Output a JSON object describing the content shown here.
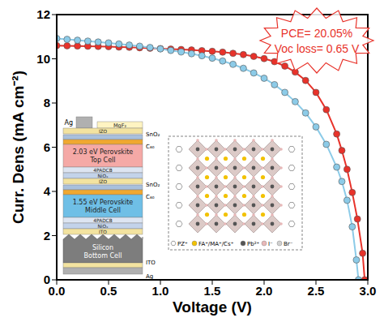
{
  "chart_data": {
    "type": "line",
    "title": null,
    "x_label": "Voltage (V)",
    "y_label": "Curr. Dens (mA cm⁻²)",
    "xlim": [
      0,
      3
    ],
    "xticks": [
      {
        "value": 0,
        "label": "0.0"
      },
      {
        "value": 0.5,
        "label": "0.5"
      },
      {
        "value": 1,
        "label": "1.0"
      },
      {
        "value": 1.5,
        "label": "1.5"
      },
      {
        "value": 2,
        "label": "2.0"
      },
      {
        "value": 2.5,
        "label": "2.5"
      },
      {
        "value": 3,
        "label": "3.0"
      }
    ],
    "ylim": [
      0,
      12
    ],
    "yticks": [
      0,
      2,
      4,
      6,
      8,
      10,
      12
    ],
    "grid": false,
    "series": [
      {
        "color": "#e8322a",
        "marker": "circle",
        "x": [
          0,
          0.1,
          0.2,
          0.3,
          0.4,
          0.5,
          0.6,
          0.7,
          0.8,
          0.9,
          1.0,
          1.1,
          1.2,
          1.3,
          1.4,
          1.5,
          1.6,
          1.7,
          1.8,
          1.9,
          2.0,
          2.1,
          2.2,
          2.3,
          2.4,
          2.5,
          2.6,
          2.7,
          2.75,
          2.8,
          2.85,
          2.9,
          2.95,
          2.97
        ],
        "values": [
          10.6,
          10.59,
          10.58,
          10.57,
          10.56,
          10.55,
          10.53,
          10.52,
          10.5,
          10.48,
          10.46,
          10.44,
          10.42,
          10.4,
          10.37,
          10.34,
          10.3,
          10.25,
          10.19,
          10.11,
          10.01,
          9.87,
          9.67,
          9.4,
          9.02,
          8.48,
          7.7,
          6.6,
          5.85,
          5.0,
          3.95,
          2.75,
          1.2,
          0.0
        ]
      },
      {
        "color": "#8ccbe8",
        "marker": "circle",
        "x": [
          0,
          0.1,
          0.2,
          0.3,
          0.4,
          0.5,
          0.6,
          0.7,
          0.8,
          0.9,
          1.0,
          1.1,
          1.2,
          1.3,
          1.4,
          1.5,
          1.6,
          1.7,
          1.8,
          1.9,
          2.0,
          2.1,
          2.2,
          2.3,
          2.4,
          2.5,
          2.6,
          2.7,
          2.75,
          2.8,
          2.85,
          2.89,
          2.91
        ],
        "values": [
          10.92,
          10.88,
          10.84,
          10.8,
          10.76,
          10.72,
          10.67,
          10.62,
          10.57,
          10.51,
          10.45,
          10.38,
          10.31,
          10.23,
          10.14,
          10.03,
          9.9,
          9.75,
          9.57,
          9.36,
          9.12,
          8.83,
          8.48,
          8.06,
          7.55,
          6.92,
          6.13,
          5.1,
          4.45,
          3.6,
          2.4,
          0.9,
          0.0
        ]
      }
    ],
    "annotations": [
      "PCE= 20.05%",
      "Voc loss= 0.65 V"
    ],
    "inset_stack": [
      "Ag",
      "MgF₂",
      "IZO",
      "SnO₂",
      "C₆₀",
      "2.03 eV Perovskite Top Cell",
      "4PADCB",
      "NiOₓ",
      "IZO",
      "SnO₂",
      "C₆₀",
      "1.55 eV Perovskite Middle Cell",
      "4PADCB",
      "NiOₓ",
      "ITO",
      "Silicon Bottom Cell",
      "ITO",
      "Ag"
    ],
    "inset_structure_legend": [
      "PZ⁺",
      "FA⁺/MA⁺/Cs⁺",
      "Pb²⁺",
      "I⁻",
      "Br⁻"
    ]
  }
}
